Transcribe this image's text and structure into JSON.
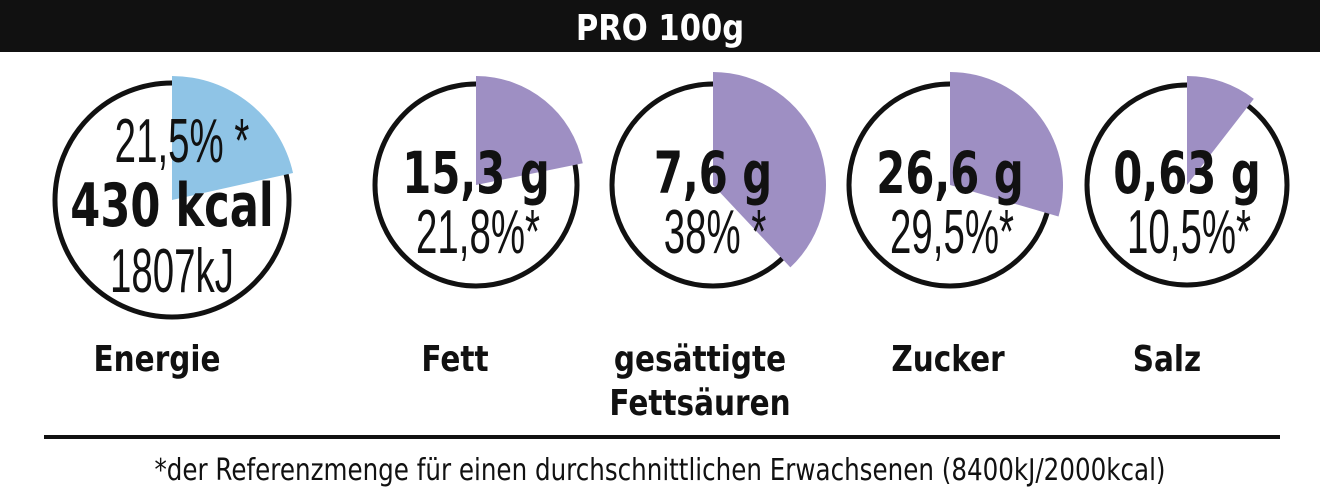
{
  "header": {
    "title": "PRO 100g"
  },
  "colors": {
    "energy_wedge": "#8fc4e6",
    "nutrient_wedge": "#9e8fc3",
    "header_bg": "#111111"
  },
  "items": [
    {
      "label": "Energie",
      "label2": "",
      "top": "21,5% *",
      "main": "430 kcal",
      "sub": "1807kJ",
      "percent": 21.5
    },
    {
      "label": "Fett",
      "label2": "",
      "main": "15,3 g",
      "sub": "21,8%*",
      "percent": 21.8
    },
    {
      "label": "gesättigte",
      "label2": "Fettsäuren",
      "main": "7,6 g",
      "sub": "38% *",
      "percent": 38
    },
    {
      "label": "Zucker",
      "label2": "",
      "main": "26,6 g",
      "sub": "29,5%*",
      "percent": 29.5
    },
    {
      "label": "Salz",
      "label2": "",
      "main": "0,63 g",
      "sub": "10,5%*",
      "percent": 10.5
    }
  ],
  "footnote": "*der Referenzmenge für einen durchschnittlichen Erwachsenen (8400kJ/2000kcal)"
}
